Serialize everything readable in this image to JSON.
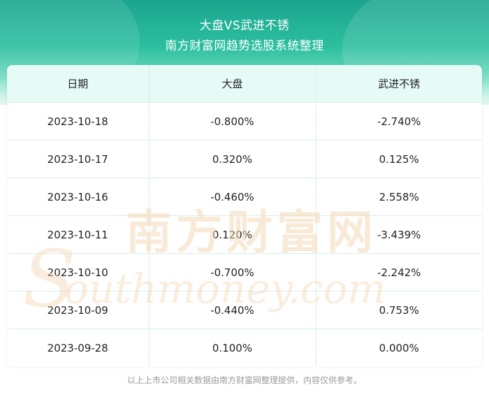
{
  "header": {
    "title_line1": "大盘VS武进不锈",
    "title_line2": "南方财富网趋势选股系统整理"
  },
  "table": {
    "columns": [
      "日期",
      "大盘",
      "武进不锈"
    ],
    "rows": [
      [
        "2023-10-18",
        "-0.800%",
        "-2.740%"
      ],
      [
        "2023-10-17",
        "0.320%",
        "0.125%"
      ],
      [
        "2023-10-16",
        "-0.460%",
        "2.558%"
      ],
      [
        "2023-10-11",
        "0.120%",
        "-3.439%"
      ],
      [
        "2023-10-10",
        "-0.700%",
        "-2.242%"
      ],
      [
        "2023-10-09",
        "-0.440%",
        "0.753%"
      ],
      [
        "2023-09-28",
        "0.100%",
        "0.000%"
      ]
    ]
  },
  "watermark": {
    "line1": "南方财富网",
    "line2": "outhmoney.com"
  },
  "footer": {
    "disclaimer": "以上上市公司相关数据由南方财富网整理提供，内容仅供参考。"
  },
  "colors": {
    "header_gradient_top": "#1aa58e",
    "table_header_bg": "#e6fbf6",
    "grid_line": "#d8efe8",
    "watermark": "#f3d8b4"
  }
}
